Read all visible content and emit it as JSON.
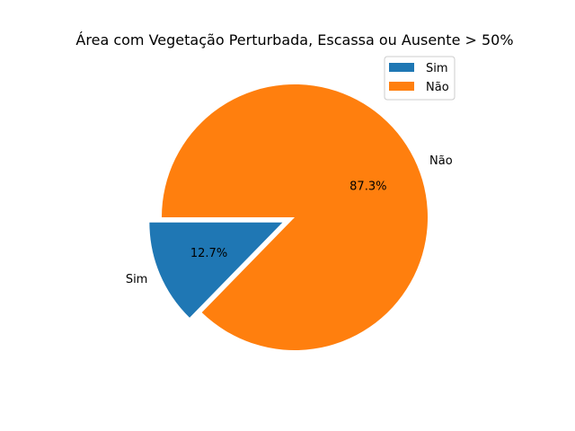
{
  "chart_data": {
    "type": "pie",
    "title": "Área com Vegetação Perturbada, Escassa ou Ausente > 50%",
    "slices": [
      {
        "label": "Sim",
        "value": 12.7,
        "pct_label": "12.7%",
        "color": "#1f77b4",
        "exploded": true
      },
      {
        "label": "Não",
        "value": 87.3,
        "pct_label": "87.3%",
        "color": "#ff7f0e",
        "exploded": false
      }
    ],
    "start_angle_deg": 180,
    "direction": "counterclockwise",
    "legend": {
      "placement": "upper-right",
      "entries": [
        "Sim",
        "Não"
      ]
    }
  }
}
